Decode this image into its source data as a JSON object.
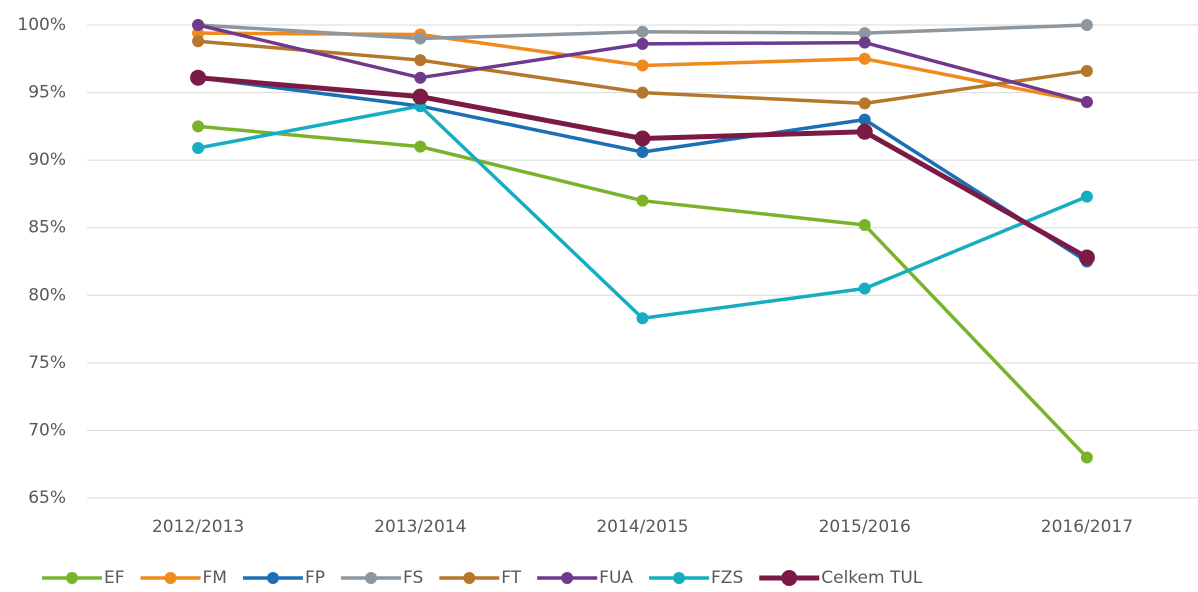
{
  "chart_data": {
    "type": "line",
    "categories": [
      "2012/2013",
      "2013/2014",
      "2014/2015",
      "2015/2016",
      "2016/2017"
    ],
    "series": [
      {
        "name": "EF",
        "color": "#7ab32b",
        "values": [
          92.5,
          91.0,
          87.0,
          85.2,
          68.0
        ]
      },
      {
        "name": "FM",
        "color": "#f08a1c",
        "values": [
          99.4,
          99.3,
          97.0,
          97.5,
          94.3
        ]
      },
      {
        "name": "FP",
        "color": "#1b6fb5",
        "values": [
          96.1,
          94.0,
          90.6,
          93.0,
          82.5
        ]
      },
      {
        "name": "FS",
        "color": "#8c979f",
        "values": [
          100.0,
          99.0,
          99.5,
          99.4,
          100.0
        ]
      },
      {
        "name": "FT",
        "color": "#b5782b",
        "values": [
          98.8,
          97.4,
          95.0,
          94.2,
          96.6
        ]
      },
      {
        "name": "FUA",
        "color": "#6e3a8e",
        "values": [
          100.0,
          96.1,
          98.6,
          98.7,
          94.3
        ]
      },
      {
        "name": "FZS",
        "color": "#17adc1",
        "values": [
          90.9,
          94.0,
          78.3,
          80.5,
          87.3
        ]
      },
      {
        "name": "Celkem TUL",
        "color": "#7a1a45",
        "values": [
          96.1,
          94.7,
          91.6,
          92.1,
          82.8
        ]
      }
    ],
    "ylim": [
      65,
      100
    ],
    "yticks": [
      {
        "value": 65,
        "label": "65%"
      },
      {
        "value": 70,
        "label": "70%"
      },
      {
        "value": 75,
        "label": "75%"
      },
      {
        "value": 80,
        "label": "80%"
      },
      {
        "value": 85,
        "label": "85%"
      },
      {
        "value": 90,
        "label": "90%"
      },
      {
        "value": 95,
        "label": "95%"
      },
      {
        "value": 100,
        "label": "100%"
      }
    ],
    "grid": true,
    "legend": "bottom"
  }
}
